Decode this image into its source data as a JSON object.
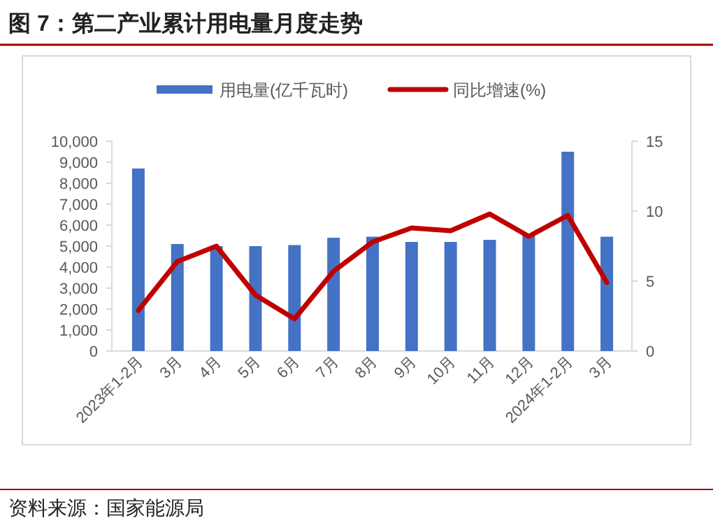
{
  "chart_data": {
    "type": "bar",
    "title": "图 7：第二产业累计用电量月度走势",
    "categories": [
      "2023年1-2月",
      "3月",
      "4月",
      "5月",
      "6月",
      "7月",
      "8月",
      "9月",
      "10月",
      "11月",
      "12月",
      "2024年1-2月",
      "3月"
    ],
    "series": [
      {
        "name": "用电量(亿千瓦时)",
        "color": "#4472c4",
        "values": [
          8700,
          5100,
          5000,
          5000,
          5050,
          5400,
          5450,
          5200,
          5200,
          5300,
          5600,
          9500,
          5450
        ]
      },
      {
        "name": "同比增速(%)",
        "color": "#c00000",
        "type": "line",
        "axis": "y2",
        "values": [
          2.9,
          6.4,
          7.5,
          4.0,
          2.3,
          5.7,
          7.8,
          8.8,
          8.6,
          9.8,
          8.2,
          9.7,
          4.9
        ]
      }
    ],
    "ylim": [
      0,
      10000
    ],
    "yticks": [
      {
        "value": 0,
        "label": "0"
      },
      {
        "value": 1000,
        "label": "1,000"
      },
      {
        "value": 2000,
        "label": "2,000"
      },
      {
        "value": 3000,
        "label": "3,000"
      },
      {
        "value": 4000,
        "label": "4,000"
      },
      {
        "value": 5000,
        "label": "5,000"
      },
      {
        "value": 6000,
        "label": "6,000"
      },
      {
        "value": 7000,
        "label": "7,000"
      },
      {
        "value": 8000,
        "label": "8,000"
      },
      {
        "value": 9000,
        "label": "9,000"
      },
      {
        "value": 10000,
        "label": "10,000"
      }
    ],
    "y2lim": [
      0,
      15
    ],
    "y2ticks": [
      0,
      5,
      10,
      15
    ],
    "legend": "top",
    "grid": false,
    "annotations": [
      "资料来源：国家能源局"
    ]
  }
}
